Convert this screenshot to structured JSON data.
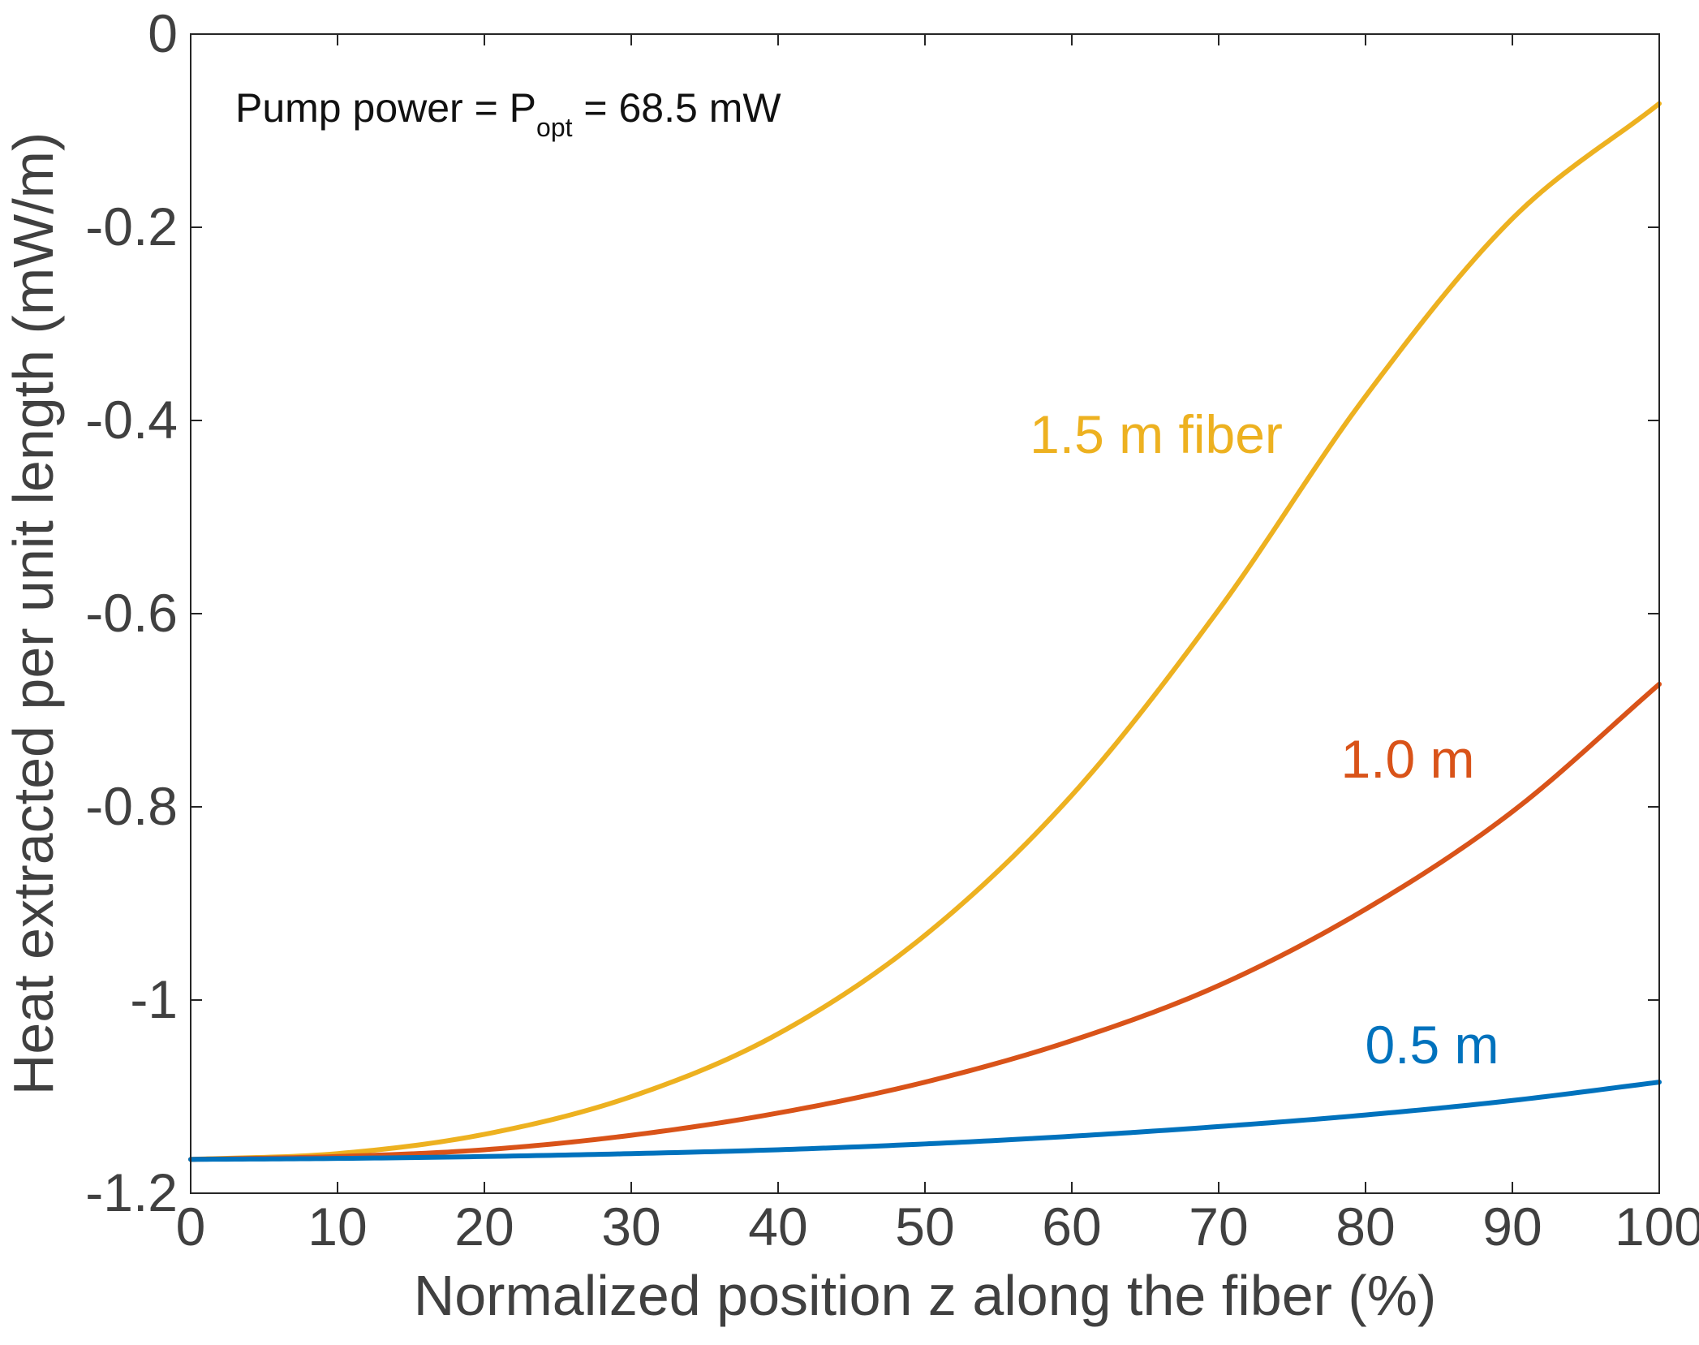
{
  "chart_data": {
    "type": "line",
    "title": "",
    "xlabel": "Normalized position z along the fiber (%)",
    "ylabel": "Heat extracted per unit length (mW/m)",
    "xlim": [
      0,
      100
    ],
    "ylim": [
      -1.2,
      0
    ],
    "xticks": [
      0,
      10,
      20,
      30,
      40,
      50,
      60,
      70,
      80,
      90,
      100
    ],
    "xtick_labels": [
      "0",
      "10",
      "20",
      "30",
      "40",
      "50",
      "60",
      "70",
      "80",
      "90",
      "100"
    ],
    "yticks": [
      0,
      -0.2,
      -0.4,
      -0.6,
      -0.8,
      -1,
      -1.2
    ],
    "ytick_labels": [
      "0",
      "-0.2",
      "-0.4",
      "-0.6",
      "-0.8",
      "-1",
      "-1.2"
    ],
    "grid": false,
    "annotation": {
      "prefix": "Pump power = P",
      "subscript": "opt",
      "suffix": " = 68.5 mW"
    },
    "x": [
      0,
      10,
      20,
      30,
      40,
      50,
      60,
      70,
      80,
      90,
      100
    ],
    "series": [
      {
        "name": "1.5 m fiber",
        "color": "#EDB120",
        "values": [
          -1.165,
          -1.159,
          -1.139,
          -1.1,
          -1.035,
          -0.933,
          -0.788,
          -0.596,
          -0.375,
          -0.191,
          -0.072
        ]
      },
      {
        "name": "1.0 m",
        "color": "#D95319",
        "values": [
          -1.165,
          -1.162,
          -1.155,
          -1.14,
          -1.117,
          -1.085,
          -1.042,
          -0.985,
          -0.906,
          -0.805,
          -0.673
        ]
      },
      {
        "name": "0.5 m",
        "color": "#0072BD",
        "values": [
          -1.165,
          -1.164,
          -1.162,
          -1.159,
          -1.155,
          -1.149,
          -1.141,
          -1.131,
          -1.119,
          -1.104,
          -1.085
        ]
      }
    ]
  }
}
